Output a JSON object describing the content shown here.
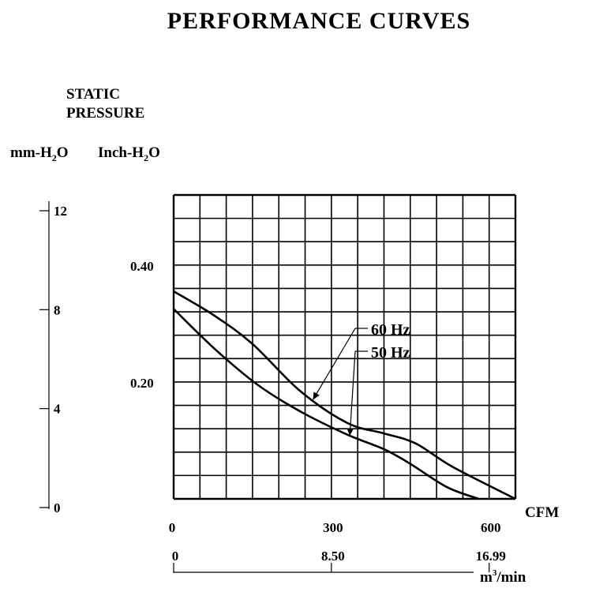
{
  "chart_data": {
    "type": "line",
    "title": "PERFORMANCE CURVES",
    "ylabel": "STATIC PRESSURE",
    "ylabel_lines": [
      "STATIC",
      "PRESSURE"
    ],
    "y_units": {
      "mm": "mm-H",
      "inch": "Inch-H",
      "sub": "2",
      "suffix": "O"
    },
    "x_units": {
      "cfm": "CFM",
      "m3_prefix": "m",
      "m3_sup": "3",
      "m3_suffix": "/min"
    },
    "xlim": [
      0,
      650
    ],
    "ylim": [
      0,
      0.52
    ],
    "grid": true,
    "grid_cols": 13,
    "grid_rows": 13,
    "x_ticks_cfm": [
      {
        "value": 0,
        "label": "0"
      },
      {
        "value": 300,
        "label": "300"
      },
      {
        "value": 600,
        "label": "600"
      }
    ],
    "x_ticks_m3": [
      {
        "value": 0,
        "label": "0"
      },
      {
        "value": 300,
        "label": "8.50"
      },
      {
        "value": 600,
        "label": "16.99"
      }
    ],
    "y_ticks_inch": [
      {
        "value": 0.2,
        "label": "0.20"
      },
      {
        "value": 0.4,
        "label": "0.40"
      }
    ],
    "y_ticks_mm": [
      {
        "value": 0,
        "label": "0"
      },
      {
        "value": 4,
        "label": "4"
      },
      {
        "value": 8,
        "label": "8"
      },
      {
        "value": 12,
        "label": "12"
      }
    ],
    "series": [
      {
        "name": "60 Hz",
        "points": [
          [
            0,
            0.355
          ],
          [
            75,
            0.315
          ],
          [
            150,
            0.265
          ],
          [
            240,
            0.185
          ],
          [
            330,
            0.13
          ],
          [
            400,
            0.112
          ],
          [
            460,
            0.095
          ],
          [
            530,
            0.055
          ],
          [
            650,
            0.0
          ]
        ]
      },
      {
        "name": "50 Hz",
        "points": [
          [
            0,
            0.325
          ],
          [
            80,
            0.255
          ],
          [
            160,
            0.195
          ],
          [
            240,
            0.15
          ],
          [
            330,
            0.11
          ],
          [
            400,
            0.085
          ],
          [
            450,
            0.06
          ],
          [
            520,
            0.02
          ],
          [
            580,
            0.0
          ]
        ]
      }
    ],
    "annotations": [
      {
        "label": "60 Hz",
        "point_x": 265
      },
      {
        "label": "50 Hz",
        "point_x": 335
      }
    ]
  }
}
